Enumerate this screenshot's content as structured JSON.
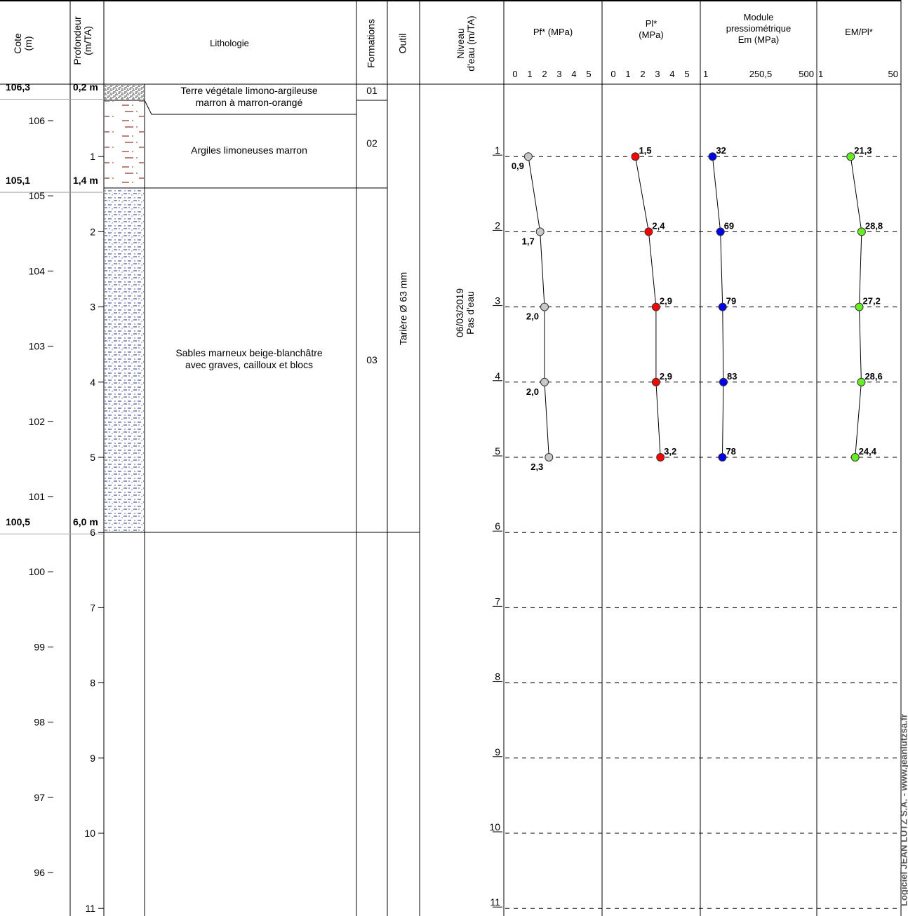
{
  "headers": {
    "cote": "Cote\n(m)",
    "profondeur": "Profondeur\n(m/TA)",
    "lithologie": "Lithologie",
    "formations": "Formations",
    "outil": "Outil",
    "niveau": "Niveau\nd'eau (m/TA)",
    "pf": "Pf* (MPa)",
    "pl": "Pl*\n(MPa)",
    "em": "Module\npressiométrique\nEm (MPa)",
    "empl": "EM/Pl*"
  },
  "scales": {
    "pf": [
      "0",
      "1",
      "2",
      "3",
      "4",
      "5"
    ],
    "pl": [
      "0",
      "1",
      "2",
      "3",
      "4",
      "5"
    ],
    "em": [
      "1",
      "250,5",
      "500"
    ],
    "empl": [
      "1",
      "50"
    ]
  },
  "cote_ticks": [
    "106",
    "105",
    "104",
    "103",
    "102",
    "101",
    "100",
    "99",
    "98",
    "97",
    "96"
  ],
  "depth_ticks": [
    "1",
    "2",
    "3",
    "4",
    "5",
    "6",
    "7",
    "8",
    "9",
    "10",
    "11"
  ],
  "layer_markers": [
    {
      "cote": "106,3",
      "depth": "0,2 m"
    },
    {
      "cote": "105,1",
      "depth": "1,4 m"
    },
    {
      "cote": "100,5",
      "depth": "6,0 m"
    }
  ],
  "layers": [
    {
      "description": "Terre végétale limono-argileuse\nmarron à marron-orangé",
      "formation": "01",
      "pattern": "topsoil"
    },
    {
      "description": "Argiles limoneuses marron",
      "formation": "02",
      "pattern": "clay"
    },
    {
      "description": "Sables marneux beige-blanchâtre\navec graves, cailloux et blocs",
      "formation": "03",
      "pattern": "sand"
    }
  ],
  "tool": "Tarière Ø 63 mm",
  "water": {
    "date": "06/03/2019",
    "text": "Pas d'eau"
  },
  "test_depths": [
    "1",
    "2",
    "3",
    "4",
    "5",
    "6",
    "7",
    "8",
    "9",
    "10",
    "11"
  ],
  "chart_data": {
    "type": "line",
    "x_depth_m": [
      1,
      2,
      3,
      4,
      5
    ],
    "series": [
      {
        "name": "Pf* (MPa)",
        "values": [
          0.9,
          1.7,
          2.0,
          2.0,
          2.3
        ],
        "labels": [
          "0,9",
          "1,7",
          "2,0",
          "2,0",
          "2,3"
        ],
        "color": "#c8c8c8",
        "xlim": [
          0,
          5
        ]
      },
      {
        "name": "Pl* (MPa)",
        "values": [
          1.5,
          2.4,
          2.9,
          2.9,
          3.2
        ],
        "labels": [
          "1,5",
          "2,4",
          "2,9",
          "2,9",
          "3,2"
        ],
        "color": "#ff0000",
        "xlim": [
          0,
          5
        ]
      },
      {
        "name": "Em (MPa)",
        "values": [
          32,
          69,
          79,
          83,
          78
        ],
        "labels": [
          "32",
          "69",
          "79",
          "83",
          "78"
        ],
        "color": "#0000ee",
        "xlim": [
          1,
          500
        ]
      },
      {
        "name": "EM/Pl*",
        "values": [
          21.3,
          28.8,
          27.2,
          28.6,
          24.4
        ],
        "labels": [
          "21,3",
          "28,8",
          "27,2",
          "28,6",
          "24,4"
        ],
        "color": "#66ee22",
        "xlim": [
          1,
          50
        ]
      }
    ]
  },
  "footer": "Logiciel JEAN LUTZ S.A. - www.jeanlutzsa.fr"
}
